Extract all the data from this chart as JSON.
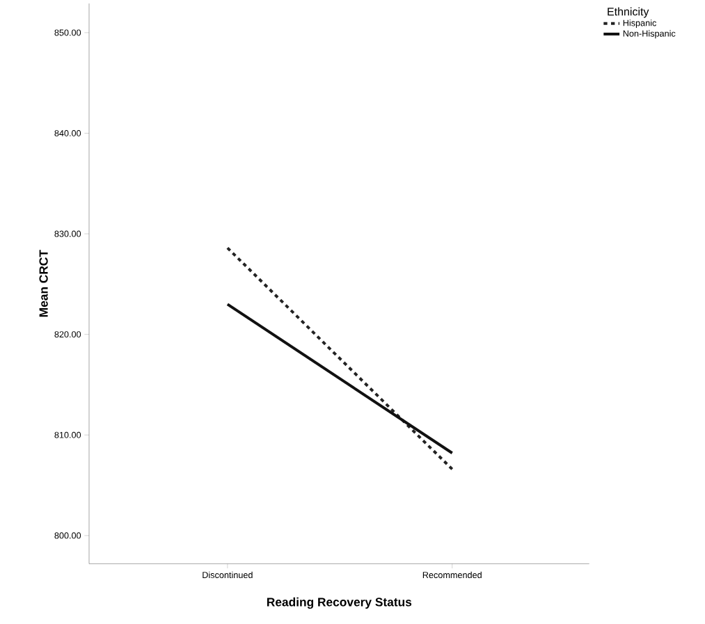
{
  "chart_data": {
    "type": "line",
    "xlabel": "Reading Recovery Status",
    "ylabel": "Mean CRCT",
    "legend_title": "Ethnicity",
    "categories": [
      "Discontinued",
      "Recommended"
    ],
    "series": [
      {
        "name": "Hispanic",
        "color": "#222222",
        "line_style": "dotted",
        "values": [
          828.6,
          806.6
        ]
      },
      {
        "name": "Non-Hispanic",
        "color": "#111111",
        "line_style": "solid",
        "values": [
          823.0,
          808.2
        ]
      }
    ],
    "ylim": [
      797.2,
      852.9
    ],
    "yticks": [
      {
        "value": 800,
        "label": "800.00"
      },
      {
        "value": 810,
        "label": "810.00"
      },
      {
        "value": 820,
        "label": "820.00"
      },
      {
        "value": 830,
        "label": "830.00"
      },
      {
        "value": 840,
        "label": "840.00"
      },
      {
        "value": 850,
        "label": "850.00"
      }
    ],
    "legend": "top right",
    "grid": false,
    "marker": "none"
  }
}
